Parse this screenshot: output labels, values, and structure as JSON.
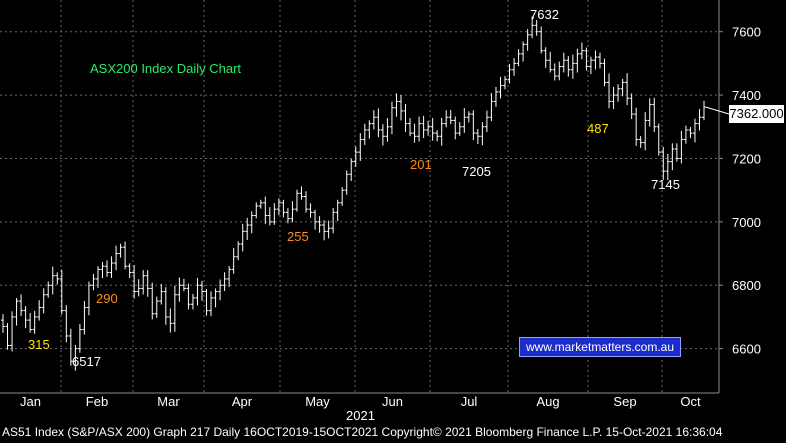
{
  "footer": "AS51 Index (S&P/ASX 200) Graph 217  Daily 16OCT2019-15OCT2021 Copyright© 2021 Bloomberg Finance L.P. 15-Oct-2021 16:36:04",
  "watermark": "www.marketmatters.com.au",
  "colors": {
    "background": "#000000",
    "candle": "#ffffff",
    "title": "#2ee86a",
    "orange_annotation": "#ff8c1a",
    "yellow_annotation": "#ffe600",
    "grid": "#6a6a6a",
    "watermark_bg": "#1c2cc8"
  },
  "chart_data": {
    "type": "line",
    "style": "ohlc-bars",
    "title": "ASX200 Index Daily Chart",
    "last_value_label": "7362.000",
    "ylim": [
      6460,
      7700
    ],
    "y_ticks": [
      6600,
      6800,
      7000,
      7200,
      7400,
      7600
    ],
    "x_tick_labels": [
      "Jan",
      "Feb",
      "Mar",
      "Apr",
      "May",
      "Jun",
      "Jul",
      "Aug",
      "Sep",
      "Oct"
    ],
    "year_label": "2021",
    "grid": true,
    "series": [
      {
        "values": [
          6670,
          6610,
          6700,
          6750,
          6720,
          6690,
          6660,
          6700,
          6730,
          6770,
          6800,
          6830,
          6820,
          6720,
          6640,
          6560,
          6600,
          6660,
          6730,
          6800,
          6820,
          6850,
          6860,
          6840,
          6870,
          6900,
          6920,
          6860,
          6840,
          6780,
          6790,
          6830,
          6790,
          6710,
          6750,
          6780,
          6700,
          6680,
          6770,
          6800,
          6790,
          6740,
          6760,
          6800,
          6780,
          6720,
          6760,
          6780,
          6800,
          6820,
          6850,
          6890,
          6930,
          6970,
          6990,
          7020,
          7050,
          7060,
          7020,
          7000,
          7040,
          7060,
          7030,
          7010,
          7040,
          7090,
          7080,
          7040,
          7030,
          7000,
          6990,
          6970,
          6980,
          7030,
          7060,
          7100,
          7150,
          7190,
          7220,
          7260,
          7290,
          7310,
          7330,
          7290,
          7270,
          7300,
          7360,
          7380,
          7350,
          7310,
          7280,
          7270,
          7310,
          7290,
          7300,
          7280,
          7270,
          7310,
          7330,
          7320,
          7280,
          7300,
          7330,
          7340,
          7280,
          7270,
          7300,
          7330,
          7380,
          7410,
          7430,
          7450,
          7480,
          7500,
          7530,
          7560,
          7590,
          7620,
          7600,
          7540,
          7510,
          7480,
          7460,
          7490,
          7510,
          7480,
          7500,
          7530,
          7540,
          7490,
          7510,
          7520,
          7500,
          7440,
          7380,
          7400,
          7420,
          7440,
          7390,
          7340,
          7260,
          7250,
          7320,
          7370,
          7300,
          7220,
          7160,
          7190,
          7230,
          7200,
          7260,
          7290,
          7280,
          7310,
          7330,
          7362
        ]
      }
    ],
    "annotations": [
      {
        "text": "315",
        "color": "yellow"
      },
      {
        "text": "6517",
        "color": "white"
      },
      {
        "text": "290",
        "color": "orange"
      },
      {
        "text": "255",
        "color": "orange"
      },
      {
        "text": "201",
        "color": "orange"
      },
      {
        "text": "7205",
        "color": "white"
      },
      {
        "text": "7632",
        "color": "white"
      },
      {
        "text": "487",
        "color": "yellow"
      },
      {
        "text": "7145",
        "color": "white"
      }
    ]
  }
}
